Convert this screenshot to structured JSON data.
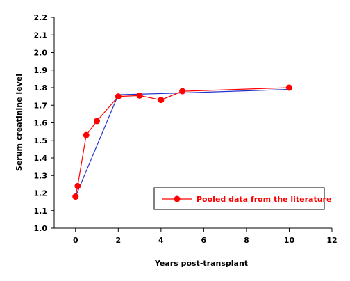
{
  "chart_data": {
    "type": "line",
    "xlabel": "Years post-transplant",
    "ylabel": "Serum creatinine level",
    "xlim": [
      -1,
      12
    ],
    "ylim": [
      1.0,
      2.2
    ],
    "x_ticks": [
      0,
      2,
      4,
      6,
      8,
      10,
      12
    ],
    "y_ticks": [
      1.0,
      1.1,
      1.2,
      1.3,
      1.4,
      1.5,
      1.6,
      1.7,
      1.8,
      1.9,
      2.0,
      2.1,
      2.2
    ],
    "grid": false,
    "legend_position": "bottom-right",
    "series": [
      {
        "name": "Pooled data from the literature",
        "color": "#ff0000",
        "marker": "circle",
        "x": [
          0,
          0.1,
          0.5,
          1,
          2,
          3,
          4,
          5,
          10
        ],
        "y": [
          1.18,
          1.24,
          1.53,
          1.61,
          1.75,
          1.755,
          1.73,
          1.78,
          1.8
        ]
      },
      {
        "color": "#2233cc",
        "marker": "none",
        "x": [
          0,
          2,
          5,
          10
        ],
        "y": [
          1.18,
          1.76,
          1.77,
          1.79
        ]
      }
    ]
  }
}
